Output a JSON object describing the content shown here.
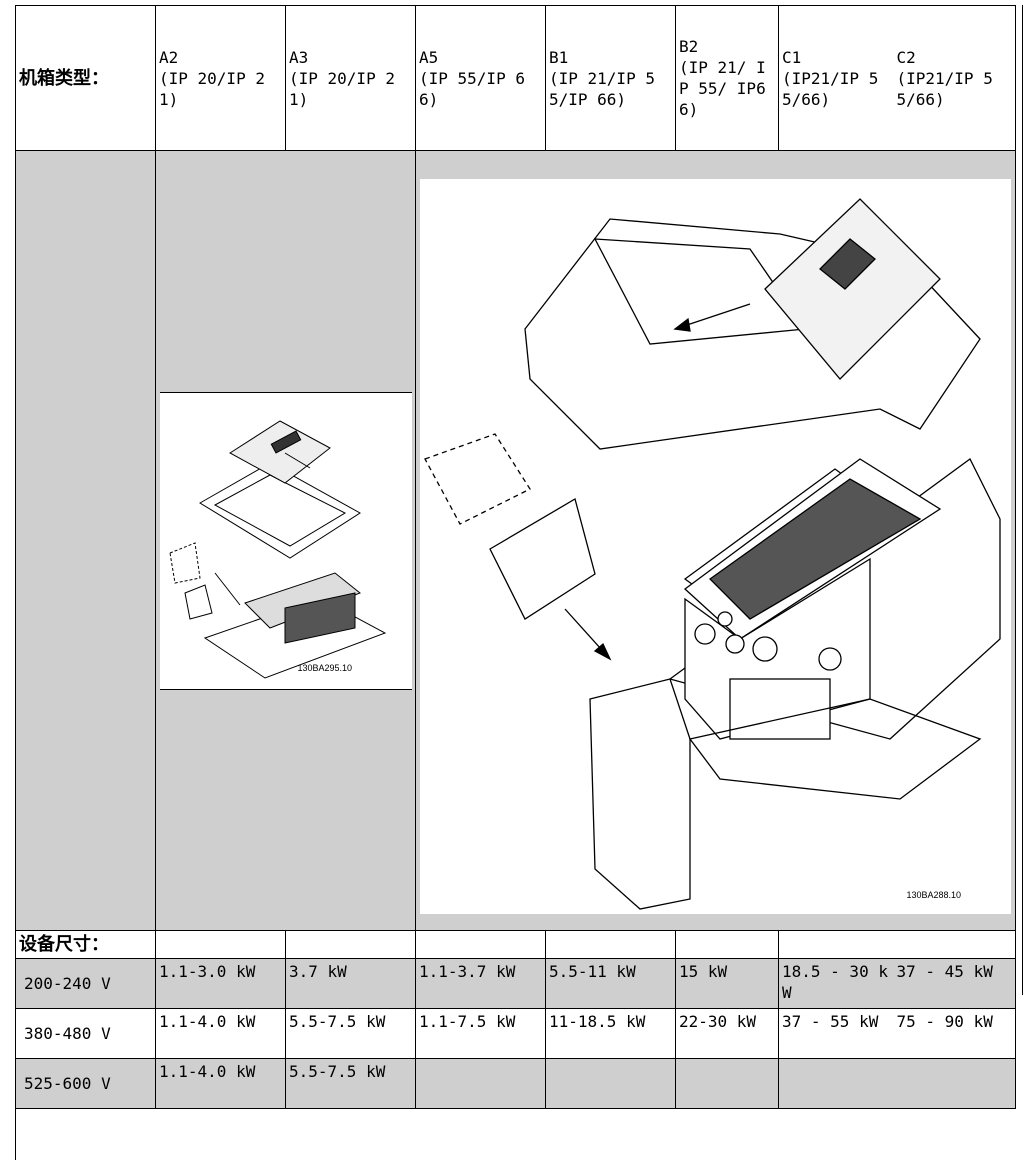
{
  "header": {
    "label": "机箱类型：",
    "columns": [
      {
        "name": "A2",
        "protection": "(IP 20/IP 21)"
      },
      {
        "name": "A3",
        "protection": "(IP 20/IP 21)"
      },
      {
        "name": "A5",
        "protection": "(IP 55/IP 66)"
      },
      {
        "name": "B1",
        "protection": "(IP 21/IP 55/IP 66)"
      },
      {
        "name": "B2",
        "protection": "(IP 21/ IP 55/ IP66)"
      },
      {
        "name": "C1",
        "protection": "(IP21/IP 55/66)"
      },
      {
        "name": "C2",
        "protection": "(IP21/IP 55/66)"
      }
    ]
  },
  "figures": [
    {
      "code": "130BA295.10"
    },
    {
      "code": "130BA288.10"
    }
  ],
  "section_label": "设备尺寸：",
  "rows": [
    {
      "voltage": "200-240 V",
      "cells": [
        "1.1-3.0 kW",
        "3.7 kW",
        "1.1-3.7 kW",
        "5.5-11 kW",
        "15 kW",
        "18.5 - 30 kW",
        "37 - 45 kW"
      ]
    },
    {
      "voltage": "380-480 V",
      "cells": [
        "1.1-4.0 kW",
        "5.5-7.5 kW",
        "1.1-7.5 kW",
        "11-18.5 kW",
        "22-30 kW",
        "37 - 55 kW",
        "75 - 90 kW"
      ]
    },
    {
      "voltage": "525-600 V",
      "cells": [
        "1.1-4.0 kW",
        "5.5-7.5 kW"
      ]
    }
  ]
}
